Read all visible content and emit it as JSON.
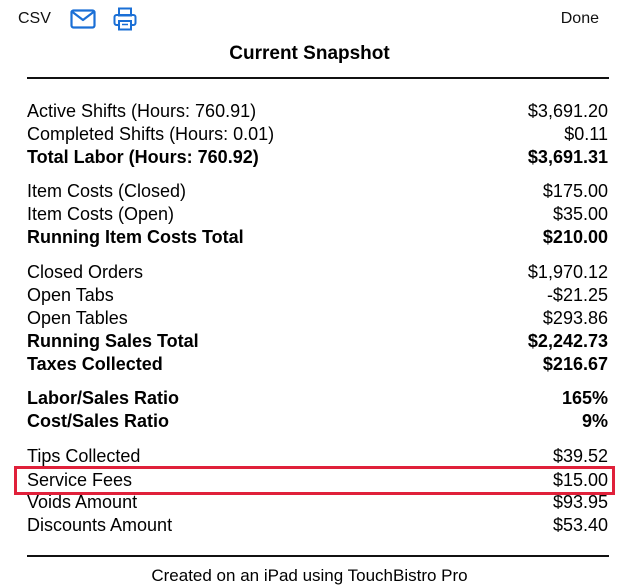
{
  "toolbar": {
    "csv_label": "CSV",
    "mail_icon": "mail-icon",
    "print_icon": "printer-icon",
    "done_label": "Done",
    "accent": "#1a6fd6"
  },
  "report": {
    "title": "Current Snapshot",
    "rows": [
      {
        "label": "Active Shifts (Hours: 760.91)",
        "value": "$3,691.20"
      },
      {
        "label": "Completed Shifts (Hours: 0.01)",
        "value": "$0.11"
      },
      {
        "label": "Total Labor (Hours: 760.92)",
        "value": "$3,691.31"
      },
      {
        "label": "Item Costs (Closed)",
        "value": "$175.00"
      },
      {
        "label": "Item Costs (Open)",
        "value": "$35.00"
      },
      {
        "label": "Running Item Costs Total",
        "value": "$210.00"
      },
      {
        "label": "Closed Orders",
        "value": "$1,970.12"
      },
      {
        "label": "Open Tabs",
        "value": "-$21.25"
      },
      {
        "label": "Open Tables",
        "value": "$293.86"
      },
      {
        "label": "Running Sales Total",
        "value": "$2,242.73"
      },
      {
        "label": "Taxes Collected",
        "value": "$216.67"
      },
      {
        "label": "Labor/Sales Ratio",
        "value": "165%"
      },
      {
        "label": "Cost/Sales Ratio",
        "value": "9%"
      },
      {
        "label": "Tips Collected",
        "value": "$39.52"
      },
      {
        "label": "Service Fees",
        "value": "$15.00"
      },
      {
        "label": "Voids Amount",
        "value": "$93.95"
      },
      {
        "label": "Discounts Amount",
        "value": "$53.40"
      }
    ],
    "highlight_color": "#e0203a",
    "footer": "Created on an iPad using TouchBistro Pro"
  }
}
